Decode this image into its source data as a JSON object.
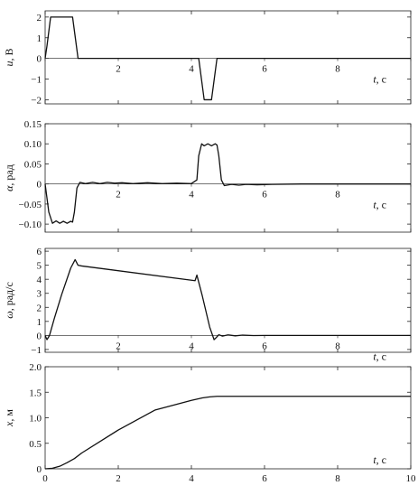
{
  "chart_data": [
    {
      "type": "line",
      "ylabel": {
        "var": "u",
        "unit": ", В"
      },
      "xlabel": {
        "var": "t",
        "unit": ", с"
      },
      "xlim": [
        0,
        10
      ],
      "ylim": [
        -2.2,
        2.3
      ],
      "xticks": [
        "0",
        "2",
        "4",
        "6",
        "8",
        "10"
      ],
      "yticks": [
        {
          "v": 2,
          "label": "2"
        },
        {
          "v": 1,
          "label": "1"
        },
        {
          "v": 0,
          "label": "0"
        },
        {
          "v": -1,
          "label": "−1"
        },
        {
          "v": -2,
          "label": "−2"
        }
      ],
      "grid": false,
      "series": [
        {
          "x": [
            0,
            0.05,
            0.15,
            0.75,
            0.9,
            4.2,
            4.35,
            4.55,
            4.7,
            10
          ],
          "y": [
            0,
            0.6,
            2,
            2,
            0,
            0,
            -2,
            -2,
            0,
            0
          ]
        }
      ]
    },
    {
      "type": "line",
      "ylabel": {
        "var": "α",
        "unit": ", рад"
      },
      "xlabel": {
        "var": "t",
        "unit": ", с"
      },
      "xlim": [
        0,
        10
      ],
      "ylim": [
        -0.12,
        0.15
      ],
      "xticks": [
        "0",
        "2",
        "4",
        "6",
        "8",
        "10"
      ],
      "yticks": [
        {
          "v": 0.15,
          "label": "0.15"
        },
        {
          "v": 0.1,
          "label": "0.10"
        },
        {
          "v": 0.05,
          "label": "0.05"
        },
        {
          "v": 0,
          "label": "0"
        },
        {
          "v": -0.05,
          "label": "−0.05"
        },
        {
          "v": -0.1,
          "label": "−0.10"
        }
      ],
      "grid": false,
      "series": [
        {
          "x": [
            0,
            0.1,
            0.2,
            0.3,
            0.4,
            0.5,
            0.6,
            0.7,
            0.75,
            0.8,
            0.87,
            0.95,
            1.1,
            1.3,
            1.5,
            1.7,
            1.9,
            2.1,
            2.4,
            2.8,
            3.2,
            3.6,
            4.0,
            4.15,
            4.2,
            4.28,
            4.35,
            4.45,
            4.55,
            4.65,
            4.7,
            4.75,
            4.82,
            4.9,
            5.1,
            5.3,
            5.5,
            5.8,
            6.2,
            7,
            8,
            9,
            10
          ],
          "y": [
            0,
            -0.07,
            -0.098,
            -0.092,
            -0.098,
            -0.093,
            -0.098,
            -0.093,
            -0.095,
            -0.07,
            -0.01,
            0.004,
            0.001,
            0.004,
            0.001,
            0.004,
            0.002,
            0.003,
            0.001,
            0.003,
            0.001,
            0.002,
            0.001,
            0.01,
            0.07,
            0.1,
            0.095,
            0.1,
            0.095,
            0.1,
            0.097,
            0.07,
            0.01,
            -0.004,
            -0.001,
            -0.003,
            -0.001,
            -0.002,
            -0.001,
            0,
            0,
            0,
            0
          ]
        }
      ]
    },
    {
      "type": "line",
      "ylabel": {
        "var": "ω",
        "unit": ", рад/с"
      },
      "xlabel": {
        "var": "t",
        "unit": ", с"
      },
      "xlim": [
        0,
        10
      ],
      "ylim": [
        -1.2,
        6.2
      ],
      "xticks": [
        "0",
        "2",
        "4",
        "6",
        "8",
        "10"
      ],
      "yticks": [
        {
          "v": 6,
          "label": "6"
        },
        {
          "v": 5,
          "label": "5"
        },
        {
          "v": 4,
          "label": "4"
        },
        {
          "v": 3,
          "label": "3"
        },
        {
          "v": 2,
          "label": "2"
        },
        {
          "v": 1,
          "label": "1"
        },
        {
          "v": 0,
          "label": "0"
        },
        {
          "v": -1,
          "label": "−1"
        }
      ],
      "grid": false,
      "series": [
        {
          "x": [
            0,
            0.05,
            0.12,
            0.25,
            0.45,
            0.7,
            0.82,
            0.9,
            1.0,
            4.1,
            4.15,
            4.2,
            4.3,
            4.5,
            4.62,
            4.68,
            4.75,
            4.85,
            5.0,
            5.2,
            5.4,
            5.7,
            6,
            7,
            8,
            9,
            10
          ],
          "y": [
            0,
            -0.3,
            0,
            1.2,
            2.9,
            4.8,
            5.4,
            5.0,
            4.95,
            3.9,
            4.3,
            3.8,
            2.8,
            0.6,
            -0.3,
            -0.15,
            0.05,
            -0.05,
            0.04,
            -0.03,
            0.02,
            -0.01,
            0,
            0,
            0,
            0,
            0
          ]
        }
      ]
    },
    {
      "type": "line",
      "ylabel": {
        "var": "x",
        "unit": ", м"
      },
      "xlabel": {
        "var": "t",
        "unit": ", с"
      },
      "xlim": [
        0,
        10
      ],
      "ylim": [
        0,
        2.0
      ],
      "xticks": [
        "0",
        "2",
        "4",
        "6",
        "8",
        "10"
      ],
      "yticks": [
        {
          "v": 2.0,
          "label": "2.0"
        },
        {
          "v": 1.5,
          "label": "1.5"
        },
        {
          "v": 1.0,
          "label": "1.0"
        },
        {
          "v": 0.5,
          "label": "0.5"
        },
        {
          "v": 0,
          "label": "0"
        }
      ],
      "grid": false,
      "series": [
        {
          "x": [
            0,
            0.2,
            0.4,
            0.6,
            0.8,
            1.0,
            2.0,
            3.0,
            4.0,
            4.3,
            4.5,
            4.7,
            5.0,
            10
          ],
          "y": [
            0,
            0.01,
            0.05,
            0.12,
            0.2,
            0.31,
            0.76,
            1.15,
            1.34,
            1.39,
            1.41,
            1.42,
            1.42,
            1.42
          ]
        }
      ]
    }
  ]
}
